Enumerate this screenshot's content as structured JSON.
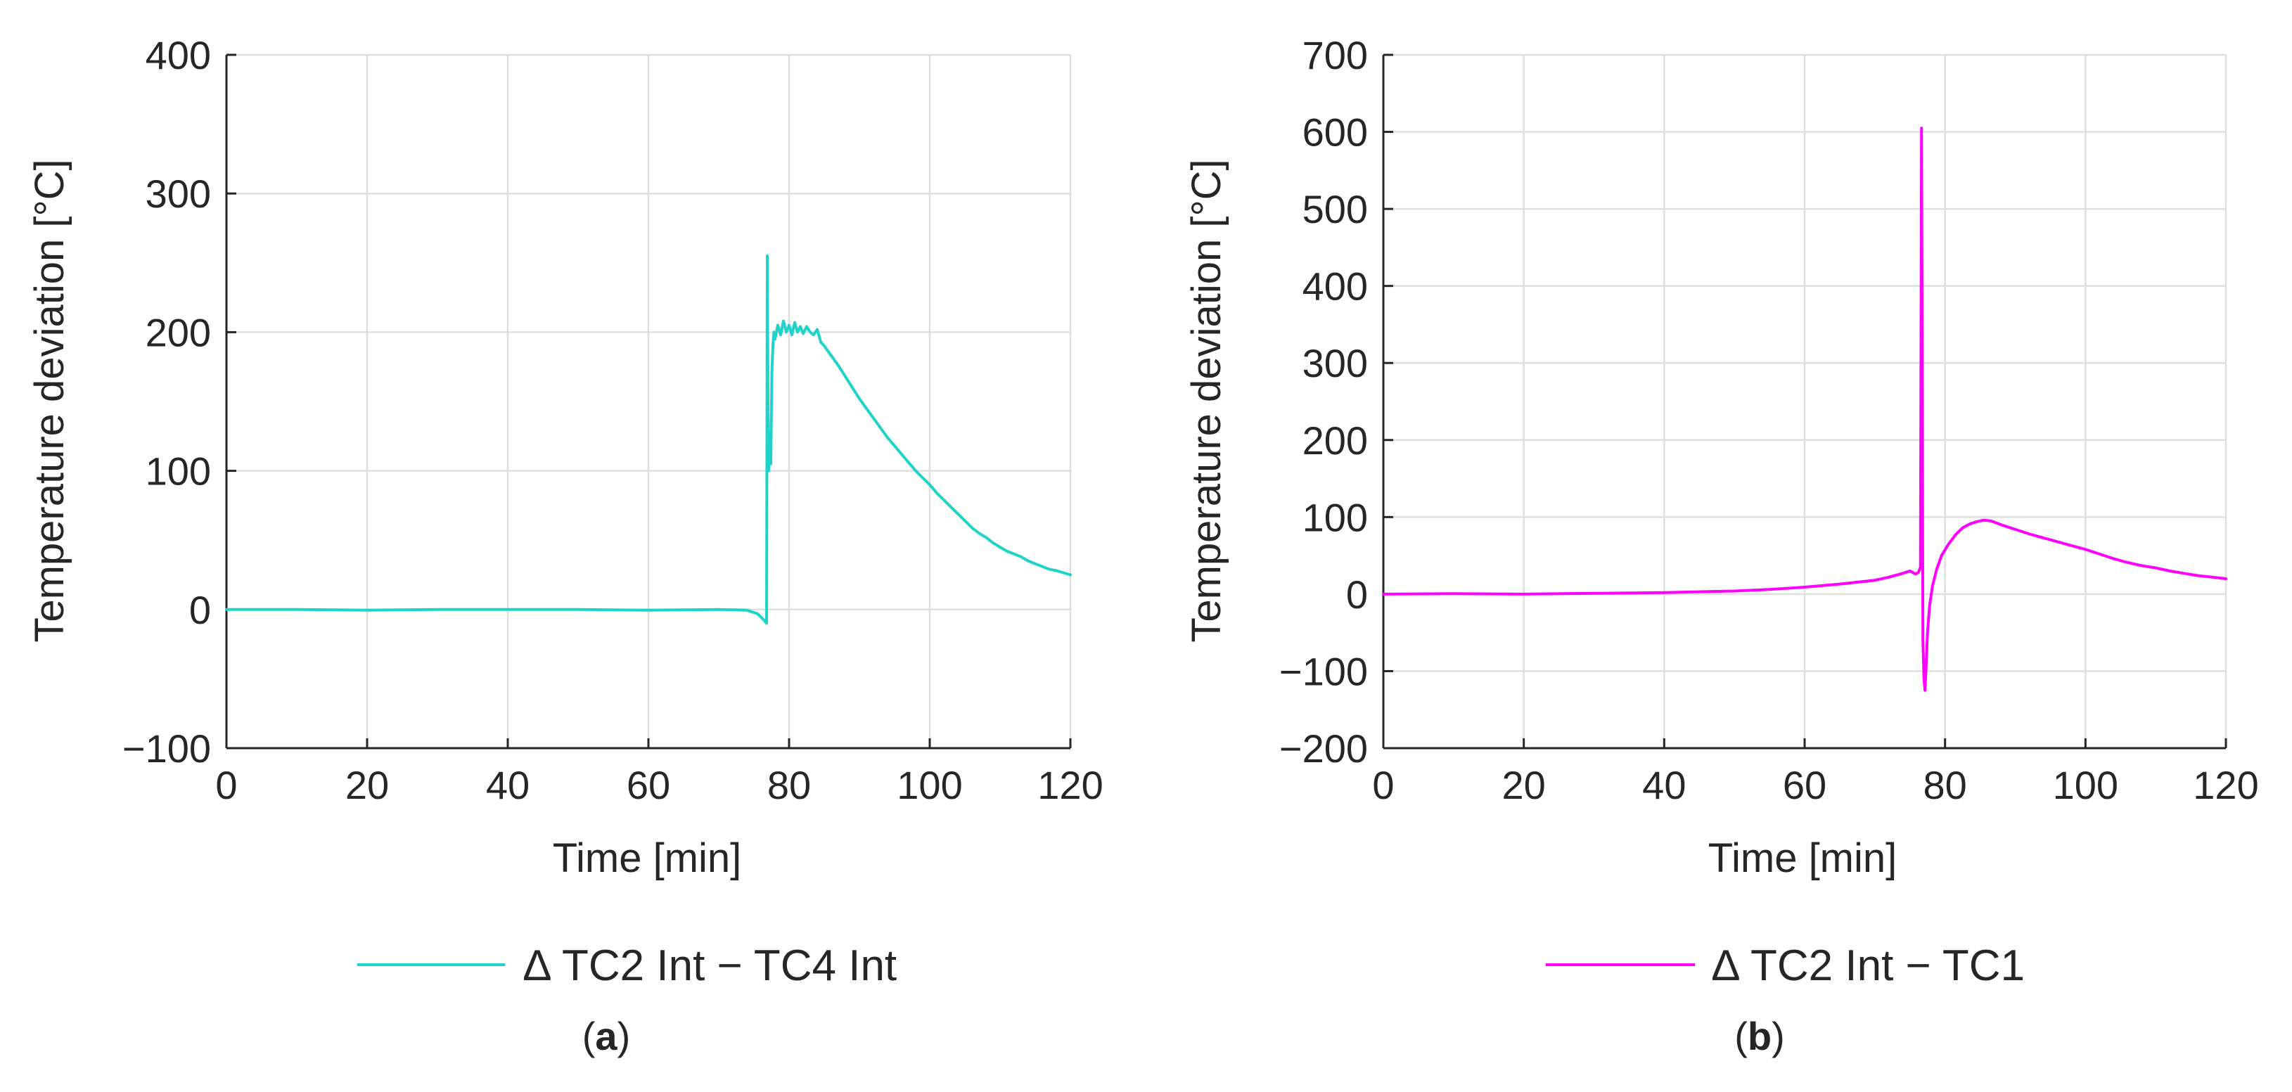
{
  "chart_data": [
    {
      "type": "line",
      "panel": "(a)",
      "panel_letter": "a",
      "title": "",
      "xlabel": "Time [min]",
      "ylabel": "Temperature deviation [°C]",
      "xlim": [
        0,
        120
      ],
      "ylim": [
        -100,
        400
      ],
      "xticks": [
        0,
        20,
        40,
        60,
        80,
        100,
        120
      ],
      "yticks": [
        -100,
        0,
        100,
        200,
        300,
        400
      ],
      "ytick_labels": [
        "−100",
        "0",
        "100",
        "200",
        "300",
        "400"
      ],
      "grid": true,
      "legend_position": "bottom-center",
      "series": [
        {
          "name": "∆ TC2 Int − TC4 Int",
          "color": "#1ed4c8",
          "x": [
            0,
            10,
            20,
            30,
            40,
            50,
            60,
            70,
            74,
            75.5,
            76.5,
            76.8,
            76.9,
            77.0,
            77.1,
            77.25,
            77.4,
            77.55,
            77.7,
            77.85,
            78.0,
            78.4,
            78.8,
            79.2,
            79.6,
            80.0,
            80.4,
            80.8,
            81.2,
            81.6,
            82.0,
            82.5,
            83.0,
            83.5,
            84.0,
            84.5,
            85,
            86,
            87,
            88,
            89,
            90,
            91,
            92,
            93,
            94,
            95,
            96,
            97,
            98,
            99,
            100,
            101,
            102,
            103,
            104,
            105,
            106,
            107,
            108,
            109,
            110,
            111,
            112,
            113,
            114,
            115,
            116,
            117,
            118,
            119,
            120
          ],
          "values": [
            0,
            0,
            -0.5,
            0,
            0,
            0,
            -0.5,
            0,
            -0.5,
            -3,
            -8,
            -10,
            255,
            150,
            100,
            115,
            105,
            170,
            190,
            200,
            195,
            205,
            198,
            208,
            200,
            205,
            198,
            207,
            200,
            204,
            199,
            204,
            200,
            198,
            202,
            193,
            190,
            183,
            176,
            168,
            160,
            152,
            145,
            138,
            131,
            124,
            118,
            112,
            106,
            100,
            95,
            90,
            84,
            79,
            74,
            69,
            64,
            59,
            55,
            52,
            48,
            45,
            42,
            40,
            38,
            35,
            33,
            31,
            29,
            28,
            26.5,
            25
          ]
        }
      ]
    },
    {
      "type": "line",
      "panel": "(b)",
      "panel_letter": "b",
      "title": "",
      "xlabel": "Time [min]",
      "ylabel": "Temperature deviation [°C]",
      "xlim": [
        0,
        120
      ],
      "ylim": [
        -200,
        700
      ],
      "xticks": [
        0,
        20,
        40,
        60,
        80,
        100,
        120
      ],
      "yticks": [
        -200,
        -100,
        0,
        100,
        200,
        300,
        400,
        500,
        600,
        700
      ],
      "ytick_labels": [
        "−200",
        "−100",
        "0",
        "100",
        "200",
        "300",
        "400",
        "500",
        "600",
        "700"
      ],
      "grid": true,
      "legend_position": "bottom-center",
      "series": [
        {
          "name": "∆ TC2 Int − TC1",
          "color": "#ff00ff",
          "x": [
            0,
            10,
            20,
            30,
            40,
            50,
            55,
            60,
            65,
            70,
            72,
            74,
            75,
            75.8,
            76.2,
            76.5,
            76.65,
            76.75,
            76.85,
            77.0,
            77.15,
            77.3,
            77.5,
            77.8,
            78.2,
            78.8,
            79.5,
            80.5,
            81.5,
            82.5,
            83.5,
            84.5,
            85.5,
            86.5,
            88,
            90,
            92,
            94,
            96,
            98,
            100,
            102,
            104,
            106,
            108,
            110,
            112,
            114,
            116,
            118,
            120
          ],
          "values": [
            0,
            0.5,
            0,
            1,
            2,
            4,
            6,
            9,
            13,
            18,
            22,
            27,
            30,
            26,
            28,
            35,
            605,
            300,
            -60,
            -110,
            -125,
            -95,
            -50,
            -15,
            10,
            32,
            50,
            65,
            77,
            86,
            91,
            94,
            96,
            95,
            90,
            84,
            78,
            73,
            68,
            63,
            58,
            52,
            46,
            41,
            37,
            34,
            30,
            27,
            24,
            22,
            20
          ]
        }
      ]
    }
  ]
}
